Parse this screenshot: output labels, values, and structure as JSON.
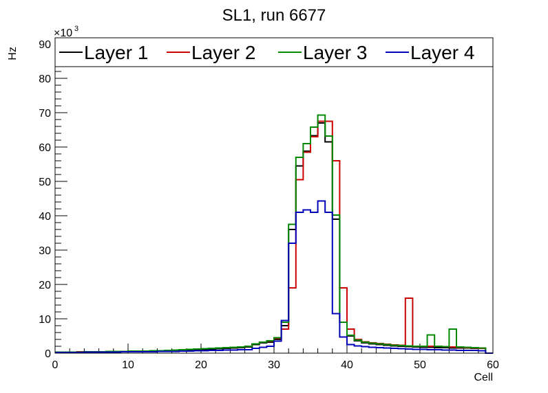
{
  "chart_data": {
    "type": "histogram",
    "title": "SL1, run 6677",
    "xlabel": "Cell",
    "ylabel": "Hz",
    "y_exponent_label": "×10",
    "y_exponent_power": "3",
    "xlim": [
      0,
      60
    ],
    "ylim": [
      0,
      90
    ],
    "bin_width": 1,
    "x_ticks": [
      0,
      10,
      20,
      30,
      40,
      50,
      60
    ],
    "y_ticks": [
      0,
      10,
      20,
      30,
      40,
      50,
      60,
      70,
      80,
      90
    ],
    "x_tick_labels": [
      "0",
      "10",
      "20",
      "30",
      "40",
      "50",
      "60"
    ],
    "y_tick_labels": [
      "0",
      "10",
      "20",
      "30",
      "40",
      "50",
      "60",
      "70",
      "80",
      "90"
    ],
    "legend_position": "top",
    "series": [
      {
        "name": "Layer 1",
        "color": "#000000",
        "values": [
          0.3,
          0.3,
          0.3,
          0.3,
          0.4,
          0.4,
          0.4,
          0.4,
          0.4,
          0.5,
          0.5,
          0.5,
          0.6,
          0.6,
          0.6,
          0.7,
          0.7,
          0.8,
          0.9,
          1.0,
          1.1,
          1.2,
          1.3,
          1.4,
          1.5,
          1.6,
          1.8,
          2.5,
          3.0,
          3.2,
          4.0,
          8.0,
          36.0,
          54.5,
          58.8,
          63.3,
          67.0,
          61.5,
          39.0,
          9.0,
          5.0,
          3.6,
          3.0,
          2.7,
          2.5,
          2.3,
          2.1,
          2.0,
          1.9,
          1.8,
          1.7,
          1.7,
          1.6,
          1.6,
          1.5,
          1.5,
          1.5,
          1.4,
          1.4,
          0.0
        ]
      },
      {
        "name": "Layer 2",
        "color": "#cc0000",
        "values": [
          0.3,
          0.3,
          0.3,
          0.4,
          0.4,
          0.4,
          0.4,
          0.5,
          0.5,
          0.5,
          0.6,
          0.6,
          0.6,
          0.7,
          0.7,
          0.8,
          0.9,
          1.0,
          1.1,
          1.2,
          1.3,
          1.4,
          1.5,
          1.6,
          1.7,
          1.8,
          2.0,
          2.7,
          3.2,
          3.5,
          4.3,
          7.0,
          19.0,
          50.5,
          58.5,
          63.0,
          67.5,
          67.5,
          56.0,
          19.0,
          7.0,
          4.0,
          3.3,
          3.0,
          2.8,
          2.6,
          2.4,
          2.3,
          16.0,
          2.0,
          2.0,
          2.0,
          2.0,
          1.9,
          1.8,
          1.7,
          1.6,
          1.5,
          1.4,
          0.0
        ]
      },
      {
        "name": "Layer 3",
        "color": "#008800",
        "values": [
          0.3,
          0.3,
          0.3,
          0.3,
          0.4,
          0.4,
          0.4,
          0.5,
          0.5,
          0.5,
          0.6,
          0.6,
          0.6,
          0.7,
          0.7,
          0.8,
          0.9,
          1.0,
          1.1,
          1.2,
          1.3,
          1.4,
          1.5,
          1.6,
          1.7,
          1.8,
          2.0,
          2.7,
          3.2,
          3.6,
          4.5,
          9.0,
          37.5,
          57.0,
          61.0,
          65.8,
          69.3,
          63.2,
          40.2,
          9.0,
          5.2,
          3.8,
          3.2,
          2.9,
          2.7,
          2.5,
          2.3,
          2.2,
          2.1,
          2.0,
          2.0,
          5.3,
          2.0,
          1.9,
          7.0,
          1.8,
          1.7,
          1.6,
          1.5,
          0.0
        ]
      },
      {
        "name": "Layer 4",
        "color": "#0000bb",
        "values": [
          0.2,
          0.2,
          0.2,
          0.2,
          0.3,
          0.3,
          0.3,
          0.3,
          0.3,
          0.4,
          0.4,
          0.4,
          0.4,
          0.4,
          0.5,
          0.5,
          0.5,
          0.6,
          0.6,
          0.7,
          0.7,
          0.8,
          0.8,
          0.9,
          0.9,
          1.0,
          1.0,
          1.4,
          1.7,
          2.0,
          3.5,
          9.5,
          32.0,
          41.0,
          41.7,
          41.0,
          44.3,
          41.0,
          11.5,
          4.7,
          2.5,
          2.1,
          1.9,
          1.7,
          1.6,
          1.5,
          1.4,
          1.3,
          1.2,
          1.1,
          1.1,
          1.0,
          1.0,
          0.9,
          0.9,
          0.8,
          0.8,
          0.8,
          0.7,
          0.0
        ]
      }
    ]
  }
}
